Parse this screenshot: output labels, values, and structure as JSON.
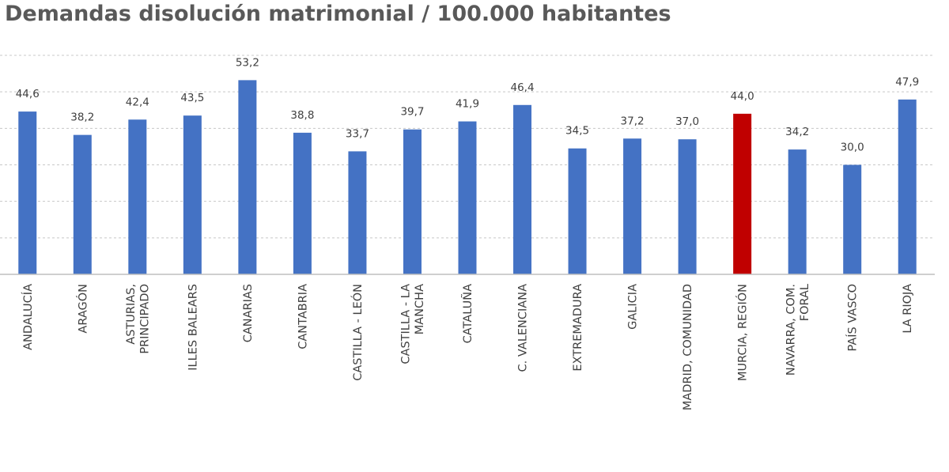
{
  "chart_data": {
    "type": "bar",
    "title": "Demandas disolución matrimonial / 100.000 habitantes",
    "xlabel": "",
    "ylabel": "",
    "ylim": [
      0,
      60
    ],
    "grid": true,
    "legend": "none",
    "bar_color": "#4472C4",
    "highlight_color": "#C00000",
    "highlight_category": "MURCIA, REGIÓN",
    "categories": [
      [
        "ANDALUCÍA"
      ],
      [
        "ARAGÓN"
      ],
      [
        "ASTURIAS,",
        "PRINCIPADO"
      ],
      [
        "ILLES BALEARS"
      ],
      [
        "CANARIAS"
      ],
      [
        "CANTABRIA"
      ],
      [
        "CASTILLA - LEÓN"
      ],
      [
        "CASTILLA - LA",
        "MANCHA"
      ],
      [
        "CATALUÑA"
      ],
      [
        "C. VALENCIANA"
      ],
      [
        "EXTREMADURA"
      ],
      [
        "GALICIA"
      ],
      [
        "MADRID, COMUNIDAD"
      ],
      [
        "MURCIA, REGIÓN"
      ],
      [
        "NAVARRA, COM.",
        "FORAL"
      ],
      [
        "PAÍS VASCO"
      ],
      [
        "LA RIOJA"
      ]
    ],
    "values": [
      44.6,
      38.2,
      42.4,
      43.5,
      53.2,
      38.8,
      33.7,
      39.7,
      41.9,
      46.4,
      34.5,
      37.2,
      37.0,
      44.0,
      34.2,
      30.0,
      47.9
    ],
    "value_labels": [
      "44,6",
      "38,2",
      "42,4",
      "43,5",
      "53,2",
      "38,8",
      "33,7",
      "39,7",
      "41,9",
      "46,4",
      "34,5",
      "37,2",
      "37,0",
      "44,0",
      "34,2",
      "30,0",
      "47,9"
    ]
  }
}
